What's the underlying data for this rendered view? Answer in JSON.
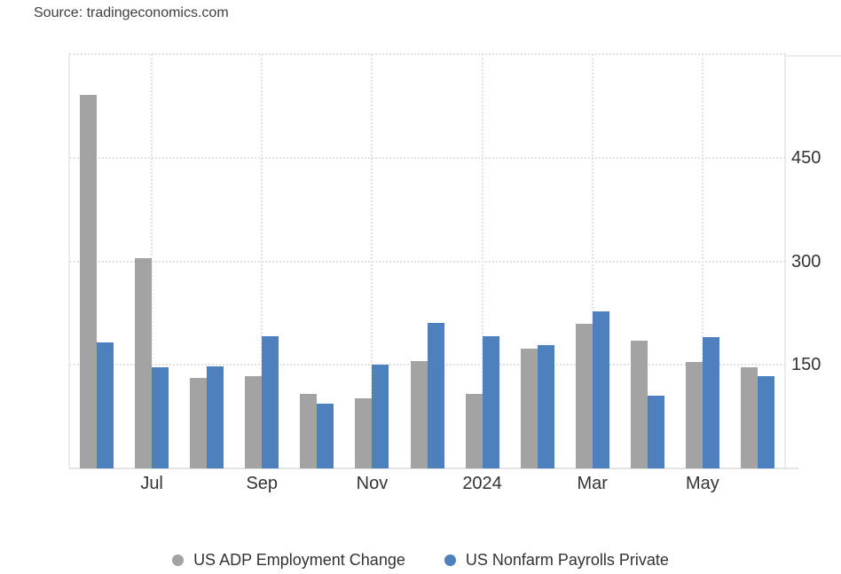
{
  "source": {
    "text": "Source: tradingeconomics.com"
  },
  "chart_data": {
    "type": "bar",
    "title": "",
    "xlabel": "",
    "ylabel": "",
    "n_groups": 13,
    "ylim": [
      0,
      600
    ],
    "grid": "dotted",
    "legend_position": "bottom",
    "y_gridlines": [
      150,
      300,
      450,
      600
    ],
    "y_tick_labels": [
      450,
      300,
      150
    ],
    "x_ticks": [
      {
        "group": 1,
        "label": "Jul"
      },
      {
        "group": 3,
        "label": "Sep"
      },
      {
        "group": 5,
        "label": "Nov"
      },
      {
        "group": 7,
        "label": "2024"
      },
      {
        "group": 9,
        "label": "Mar"
      },
      {
        "group": 11,
        "label": "May"
      }
    ],
    "series": [
      {
        "name": "US ADP Employment Change",
        "color": "#a3a3a3",
        "values": [
          541,
          304,
          131,
          134,
          108,
          102,
          155,
          108,
          173,
          209,
          185,
          154,
          147
        ]
      },
      {
        "name": "US Nonfarm Payrolls Private",
        "color": "#4d80bc",
        "values": [
          183,
          147,
          148,
          192,
          94,
          150,
          211,
          192,
          178,
          228,
          105,
          190,
          133
        ]
      }
    ]
  }
}
